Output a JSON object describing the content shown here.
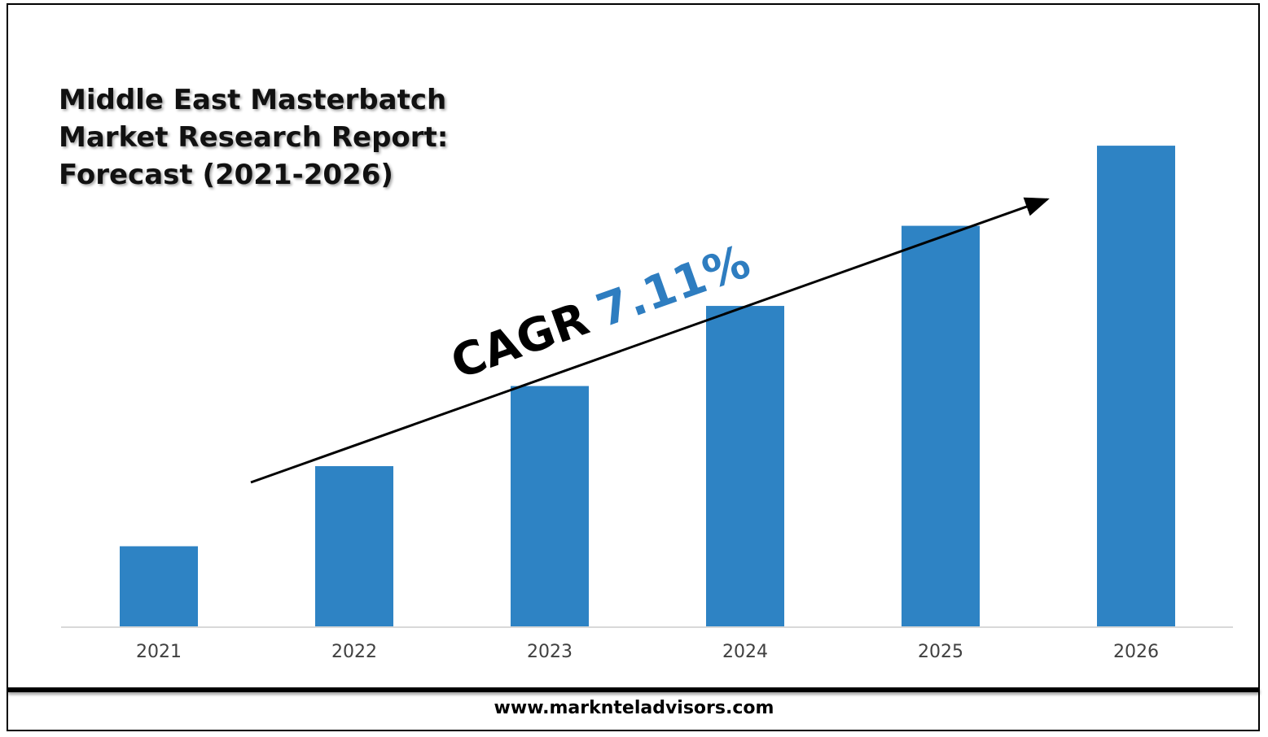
{
  "title": "Middle East Masterbatch Market Research Report: Forecast (2021-2026)",
  "footer": {
    "url": "www.marknteladvisors.com"
  },
  "annotation": {
    "prefix": "CAGR",
    "value": "7.11%",
    "prefix_color": "#000000",
    "value_color": "#2E7DC0"
  },
  "colors": {
    "bar": "#2E83C4",
    "axis": "#D9D9D9",
    "arrow": "#000000"
  },
  "chart_data": {
    "type": "bar",
    "categories": [
      "2021",
      "2022",
      "2023",
      "2024",
      "2025",
      "2026"
    ],
    "series": [
      {
        "values": [
          1.0,
          2.0,
          3.0,
          4.0,
          5.0,
          6.0
        ]
      }
    ],
    "ylim": [
      0,
      6.2
    ],
    "grid": false,
    "legend": "none",
    "value_axis_shown": false
  }
}
